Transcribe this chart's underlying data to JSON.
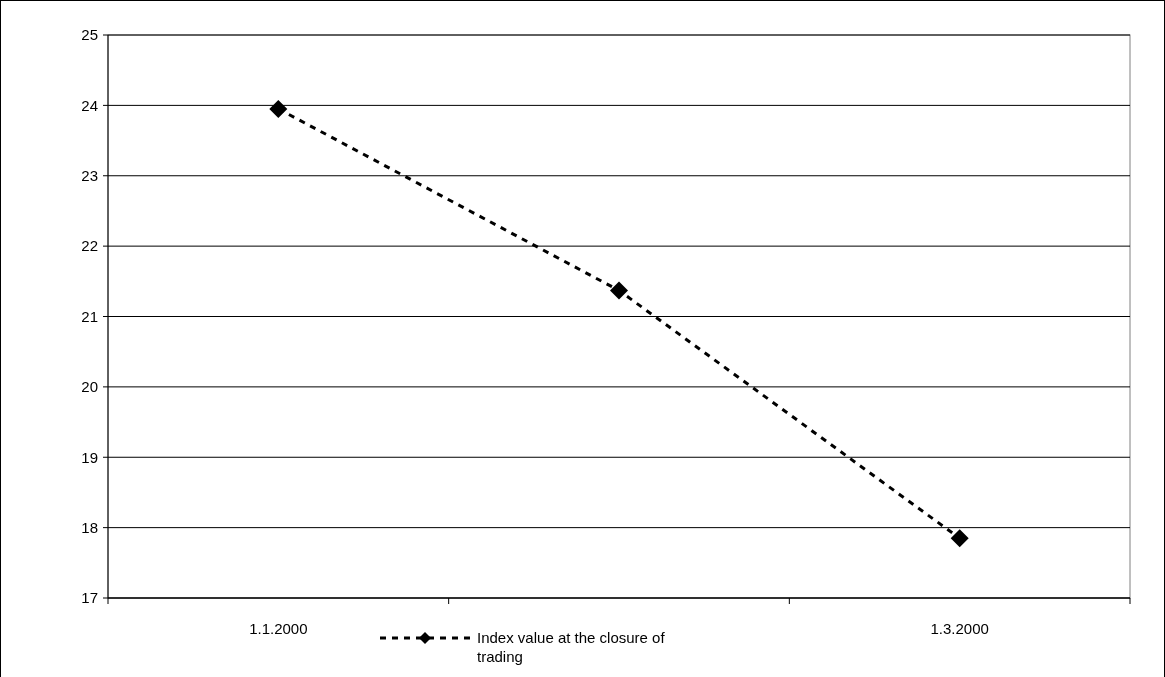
{
  "chart_data": {
    "type": "line",
    "categories": [
      "1.1.2000",
      null,
      "1.3.2000"
    ],
    "series": [
      {
        "name": "Index value at the closure of trading",
        "color": "#000000",
        "values": [
          23.95,
          21.37,
          17.85
        ]
      }
    ],
    "ylim": [
      17,
      25
    ],
    "yticks": [
      17,
      18,
      19,
      20,
      21,
      22,
      23,
      24,
      25
    ],
    "grid": "y",
    "legend": "bottom",
    "marker": "diamond",
    "line_style": "dashed"
  }
}
